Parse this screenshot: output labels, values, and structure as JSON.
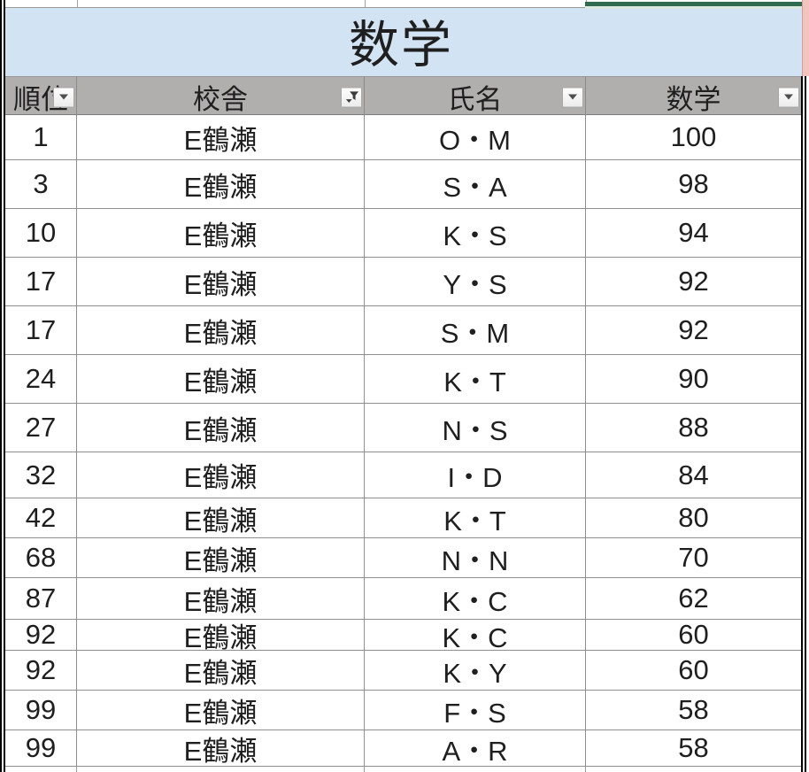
{
  "sheet_title": "数学",
  "header": {
    "columns": [
      {
        "label": "順位",
        "filter_icon": "chevron-down"
      },
      {
        "label": "校舎",
        "filter_icon": "funnel-active"
      },
      {
        "label": "氏名",
        "filter_icon": "chevron-down"
      },
      {
        "label": "数学",
        "filter_icon": "chevron-down"
      }
    ]
  },
  "rows": [
    {
      "rank": "1",
      "school": "E鶴瀬",
      "name": "O・M",
      "score": "100"
    },
    {
      "rank": "3",
      "school": "E鶴瀬",
      "name": "S・A",
      "score": "98"
    },
    {
      "rank": "10",
      "school": "E鶴瀬",
      "name": "K・S",
      "score": "94"
    },
    {
      "rank": "17",
      "school": "E鶴瀬",
      "name": "Y・S",
      "score": "92"
    },
    {
      "rank": "17",
      "school": "E鶴瀬",
      "name": "S・M",
      "score": "92"
    },
    {
      "rank": "24",
      "school": "E鶴瀬",
      "name": "K・T",
      "score": "90"
    },
    {
      "rank": "27",
      "school": "E鶴瀬",
      "name": "N・S",
      "score": "88"
    },
    {
      "rank": "32",
      "school": "E鶴瀬",
      "name": "I・D",
      "score": "84"
    },
    {
      "rank": "42",
      "school": "E鶴瀬",
      "name": "K・T",
      "score": "80"
    },
    {
      "rank": "68",
      "school": "E鶴瀬",
      "name": "N・N",
      "score": "70"
    },
    {
      "rank": "87",
      "school": "E鶴瀬",
      "name": "K・C",
      "score": "62"
    },
    {
      "rank": "92",
      "school": "E鶴瀬",
      "name": "K・C",
      "score": "60"
    },
    {
      "rank": "92",
      "school": "E鶴瀬",
      "name": "K・Y",
      "score": "60"
    },
    {
      "rank": "99",
      "school": "E鶴瀬",
      "name": "F・S",
      "score": "58"
    },
    {
      "rank": "99",
      "school": "E鶴瀬",
      "name": "A・R",
      "score": "58"
    }
  ],
  "colors": {
    "title_bg": "#d2e3f4",
    "header_bg": "#b1aeae",
    "accent_green": "#2e6b4f",
    "accent_green_light": "#dbe8df",
    "edge_pink": "#f2c4bd",
    "grid_line": "#8f8f8f",
    "text": "#1f1f1f"
  }
}
